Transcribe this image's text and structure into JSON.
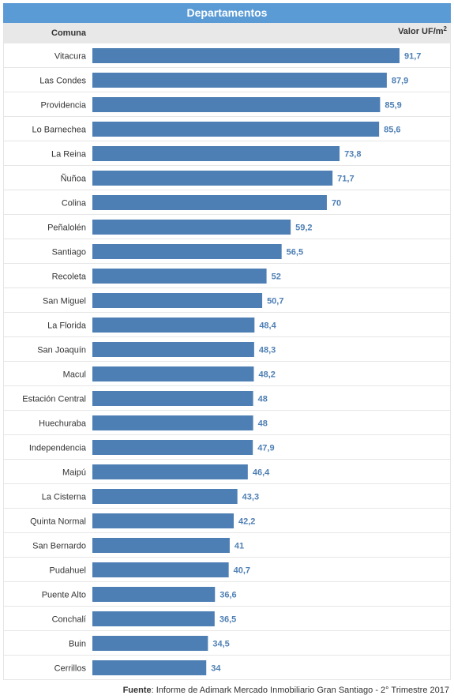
{
  "title": "Departamentos",
  "header": {
    "left": "Comuna",
    "right_main": "Valor UF/m",
    "right_sup": "2"
  },
  "source": {
    "label": "Fuente",
    "text": ": Informe de Adimark Mercado Inmobiliario Gran Santiago - 2° Trimestre 2017"
  },
  "colors": {
    "bar": "#4e7fb4",
    "value": "#4e7fb4",
    "title_bg": "#5b9bd5",
    "header_bg": "#e8e8e8",
    "row_line": "#e6e6e6"
  },
  "chart_data": {
    "type": "bar",
    "orientation": "horizontal",
    "categories": [
      "Vitacura",
      "Las Condes",
      "Providencia",
      "Lo Barnechea",
      "La Reina",
      "Ñuñoa",
      "Colina",
      "Peñalolén",
      "Santiago",
      "Recoleta",
      "San Miguel",
      "La Florida",
      "San Joaquín",
      "Macul",
      "Estación Central",
      "Huechuraba",
      "Independencia",
      "Maipú",
      "La Cisterna",
      "Quinta Normal",
      "San Bernardo",
      "Pudahuel",
      "Puente Alto",
      "Conchalí",
      "Buin",
      "Cerrillos"
    ],
    "values": [
      91.7,
      87.9,
      85.9,
      85.6,
      73.8,
      71.7,
      70,
      59.2,
      56.5,
      52,
      50.7,
      48.4,
      48.3,
      48.2,
      48,
      48,
      47.9,
      46.4,
      43.3,
      42.2,
      41,
      40.7,
      36.6,
      36.5,
      34.5,
      34
    ],
    "value_labels": [
      "91,7",
      "87,9",
      "85,9",
      "85,6",
      "73,8",
      "71,7",
      "70",
      "59,2",
      "56,5",
      "52",
      "50,7",
      "48,4",
      "48,3",
      "48,2",
      "48",
      "48",
      "47,9",
      "46,4",
      "43,3",
      "42,2",
      "41",
      "40,7",
      "36,6",
      "36,5",
      "34,5",
      "34"
    ]
  }
}
